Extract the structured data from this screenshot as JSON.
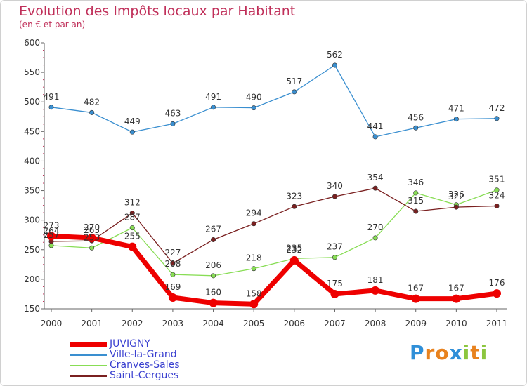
{
  "title": "Evolution des Impôts locaux par Habitant",
  "subtitle": "(en € et par an)",
  "logo": {
    "letters": [
      {
        "ch": "P",
        "color": "#2f8fd8"
      },
      {
        "ch": "r",
        "color": "#e8821e"
      },
      {
        "ch": "o",
        "color": "#e8821e"
      },
      {
        "ch": "x",
        "color": "#2f8fd8"
      },
      {
        "ch": "i",
        "color": "#8cc63e"
      },
      {
        "ch": "t",
        "color": "#e8821e"
      },
      {
        "ch": "i",
        "color": "#8cc63e"
      }
    ]
  },
  "chart_data": {
    "type": "line",
    "title": "Evolution des Impôts locaux par Habitant",
    "subtitle": "(en € et par an)",
    "categories": [
      "2000",
      "2001",
      "2002",
      "2003",
      "2004",
      "2005",
      "2006",
      "2007",
      "2008",
      "2009",
      "2010",
      "2011"
    ],
    "ylim": [
      150,
      600
    ],
    "yticks": [
      150,
      200,
      250,
      300,
      350,
      400,
      450,
      500,
      550,
      600
    ],
    "grid": false,
    "legend_position": "bottom-left",
    "series": [
      {
        "name": "JUVIGNY",
        "color": "#ee0000",
        "emphasis": true,
        "values": [
          273,
          270,
          255,
          169,
          160,
          158,
          232,
          175,
          181,
          167,
          167,
          176
        ]
      },
      {
        "name": "Ville-la-Grand",
        "color": "#3a8fd0",
        "emphasis": false,
        "values": [
          491,
          482,
          449,
          463,
          491,
          490,
          517,
          562,
          441,
          456,
          471,
          472
        ]
      },
      {
        "name": "Cranves-Sales",
        "color": "#88dd55",
        "emphasis": false,
        "values": [
          257,
          253,
          287,
          208,
          206,
          218,
          235,
          237,
          270,
          346,
          326,
          351
        ]
      },
      {
        "name": "Saint-Cergues",
        "color": "#7a2020",
        "emphasis": false,
        "values": [
          264,
          265,
          312,
          227,
          267,
          294,
          323,
          340,
          354,
          315,
          322,
          324
        ]
      }
    ]
  }
}
